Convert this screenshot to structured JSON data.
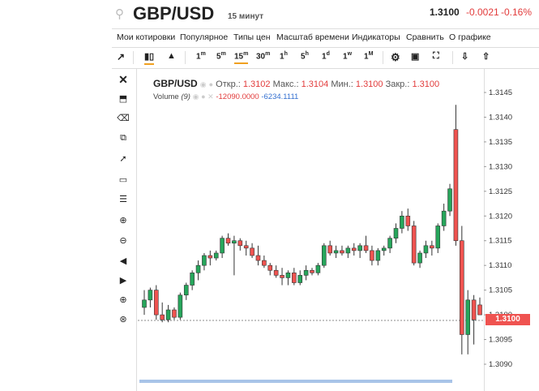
{
  "header": {
    "symbol": "GBP/USD",
    "interval": "15 минут",
    "price": "1.3100",
    "change": "-0.0021",
    "change_pct": "-0.16%"
  },
  "menu": [
    "Мои котировки",
    "Популярное",
    "Типы цен",
    "Масштаб времени",
    "Индикаторы",
    "Сравнить",
    "О графике"
  ],
  "toolbar": {
    "intervals": [
      {
        "label": "1",
        "sup": "m"
      },
      {
        "label": "5",
        "sup": "m"
      },
      {
        "label": "15",
        "sup": "m"
      },
      {
        "label": "30",
        "sup": "m"
      },
      {
        "label": "1",
        "sup": "h"
      },
      {
        "label": "5",
        "sup": "h"
      },
      {
        "label": "1",
        "sup": "d"
      },
      {
        "label": "1",
        "sup": "w"
      },
      {
        "label": "1",
        "sup": "M"
      }
    ],
    "active_interval": "15m"
  },
  "legend": {
    "symbol": "GBP/USD",
    "open_label": "Откр.:",
    "open": "1.3102",
    "high_label": "Макс.:",
    "high": "1.3104",
    "low_label": "Мин.:",
    "low": "1.3100",
    "close_label": "Закр.:",
    "close": "1.3100",
    "volume_label": "Volume",
    "volume_param": "(9)",
    "volume_v1": "-12090.0000",
    "volume_v2": "-6234.1111"
  },
  "colors": {
    "up": "#26a65b",
    "down": "#ef5350",
    "accent": "#f0a020"
  },
  "chart_data": {
    "type": "candlestick",
    "y_ticks": [
      "1.3145",
      "1.3140",
      "1.3135",
      "1.3130",
      "1.3125",
      "1.3120",
      "1.3115",
      "1.3110",
      "1.3105",
      "1.3100",
      "1.3095",
      "1.3090"
    ],
    "ylim": [
      1.3088,
      1.3148
    ],
    "last_price": "1.3100",
    "candles": [
      {
        "o": 1.31015,
        "h": 1.3105,
        "l": 1.31,
        "c": 1.3103
      },
      {
        "o": 1.3103,
        "h": 1.31055,
        "l": 1.31015,
        "c": 1.3105
      },
      {
        "o": 1.3105,
        "h": 1.3106,
        "l": 1.3099,
        "c": 1.31
      },
      {
        "o": 1.31,
        "h": 1.31025,
        "l": 1.30985,
        "c": 1.3099
      },
      {
        "o": 1.3099,
        "h": 1.3102,
        "l": 1.30985,
        "c": 1.3101
      },
      {
        "o": 1.3101,
        "h": 1.31015,
        "l": 1.3099,
        "c": 1.30995
      },
      {
        "o": 1.30995,
        "h": 1.31045,
        "l": 1.3099,
        "c": 1.3104
      },
      {
        "o": 1.3104,
        "h": 1.31065,
        "l": 1.3103,
        "c": 1.3106
      },
      {
        "o": 1.3106,
        "h": 1.3109,
        "l": 1.3105,
        "c": 1.31085
      },
      {
        "o": 1.31085,
        "h": 1.3111,
        "l": 1.3107,
        "c": 1.311
      },
      {
        "o": 1.311,
        "h": 1.31125,
        "l": 1.3109,
        "c": 1.3112
      },
      {
        "o": 1.3112,
        "h": 1.3113,
        "l": 1.311,
        "c": 1.31115
      },
      {
        "o": 1.31115,
        "h": 1.3113,
        "l": 1.3111,
        "c": 1.31125
      },
      {
        "o": 1.31125,
        "h": 1.3116,
        "l": 1.31115,
        "c": 1.31155
      },
      {
        "o": 1.31155,
        "h": 1.31165,
        "l": 1.3114,
        "c": 1.31145
      },
      {
        "o": 1.31145,
        "h": 1.3116,
        "l": 1.3108,
        "c": 1.3115
      },
      {
        "o": 1.3115,
        "h": 1.31155,
        "l": 1.3113,
        "c": 1.3114
      },
      {
        "o": 1.3114,
        "h": 1.3115,
        "l": 1.3112,
        "c": 1.31135
      },
      {
        "o": 1.31135,
        "h": 1.31145,
        "l": 1.31115,
        "c": 1.3112
      },
      {
        "o": 1.3112,
        "h": 1.3114,
        "l": 1.311,
        "c": 1.3111
      },
      {
        "o": 1.3111,
        "h": 1.3112,
        "l": 1.31095,
        "c": 1.311
      },
      {
        "o": 1.311,
        "h": 1.31105,
        "l": 1.3108,
        "c": 1.3109
      },
      {
        "o": 1.3109,
        "h": 1.311,
        "l": 1.31075,
        "c": 1.3108
      },
      {
        "o": 1.3108,
        "h": 1.31095,
        "l": 1.3106,
        "c": 1.31075
      },
      {
        "o": 1.31075,
        "h": 1.3109,
        "l": 1.3106,
        "c": 1.31085
      },
      {
        "o": 1.31085,
        "h": 1.31095,
        "l": 1.3106,
        "c": 1.31065
      },
      {
        "o": 1.31065,
        "h": 1.3109,
        "l": 1.3106,
        "c": 1.3108
      },
      {
        "o": 1.3108,
        "h": 1.311,
        "l": 1.3107,
        "c": 1.3109
      },
      {
        "o": 1.3109,
        "h": 1.31095,
        "l": 1.3108,
        "c": 1.31085
      },
      {
        "o": 1.31085,
        "h": 1.31105,
        "l": 1.3108,
        "c": 1.311
      },
      {
        "o": 1.311,
        "h": 1.31145,
        "l": 1.31095,
        "c": 1.3114
      },
      {
        "o": 1.3114,
        "h": 1.3115,
        "l": 1.3112,
        "c": 1.31125
      },
      {
        "o": 1.31125,
        "h": 1.3114,
        "l": 1.31115,
        "c": 1.3113
      },
      {
        "o": 1.3113,
        "h": 1.3114,
        "l": 1.3112,
        "c": 1.31125
      },
      {
        "o": 1.31125,
        "h": 1.3114,
        "l": 1.31115,
        "c": 1.31135
      },
      {
        "o": 1.31135,
        "h": 1.31145,
        "l": 1.3112,
        "c": 1.3113
      },
      {
        "o": 1.3113,
        "h": 1.31145,
        "l": 1.31115,
        "c": 1.3114
      },
      {
        "o": 1.3114,
        "h": 1.3116,
        "l": 1.31125,
        "c": 1.3113
      },
      {
        "o": 1.3113,
        "h": 1.3114,
        "l": 1.311,
        "c": 1.3111
      },
      {
        "o": 1.3111,
        "h": 1.31135,
        "l": 1.311,
        "c": 1.3113
      },
      {
        "o": 1.3113,
        "h": 1.3114,
        "l": 1.3112,
        "c": 1.31135
      },
      {
        "o": 1.31135,
        "h": 1.3116,
        "l": 1.31125,
        "c": 1.31155
      },
      {
        "o": 1.31155,
        "h": 1.31185,
        "l": 1.31145,
        "c": 1.31175
      },
      {
        "o": 1.31175,
        "h": 1.3121,
        "l": 1.31165,
        "c": 1.312
      },
      {
        "o": 1.312,
        "h": 1.31215,
        "l": 1.3117,
        "c": 1.3118
      },
      {
        "o": 1.3118,
        "h": 1.3119,
        "l": 1.311,
        "c": 1.31105
      },
      {
        "o": 1.31105,
        "h": 1.3113,
        "l": 1.31095,
        "c": 1.31125
      },
      {
        "o": 1.31125,
        "h": 1.3115,
        "l": 1.31115,
        "c": 1.3114
      },
      {
        "o": 1.3114,
        "h": 1.3115,
        "l": 1.3112,
        "c": 1.31135
      },
      {
        "o": 1.31135,
        "h": 1.31185,
        "l": 1.31125,
        "c": 1.3118
      },
      {
        "o": 1.3118,
        "h": 1.31225,
        "l": 1.3117,
        "c": 1.3121
      },
      {
        "o": 1.3121,
        "h": 1.31265,
        "l": 1.312,
        "c": 1.31255
      },
      {
        "o": 1.31375,
        "h": 1.31425,
        "l": 1.3114,
        "c": 1.3115
      },
      {
        "o": 1.3115,
        "h": 1.3118,
        "l": 1.3092,
        "c": 1.3096
      },
      {
        "o": 1.3096,
        "h": 1.3105,
        "l": 1.3092,
        "c": 1.3103
      },
      {
        "o": 1.3103,
        "h": 1.3104,
        "l": 1.3094,
        "c": 1.3099
      },
      {
        "o": 1.3102,
        "h": 1.31035,
        "l": 1.31,
        "c": 1.31
      }
    ]
  }
}
